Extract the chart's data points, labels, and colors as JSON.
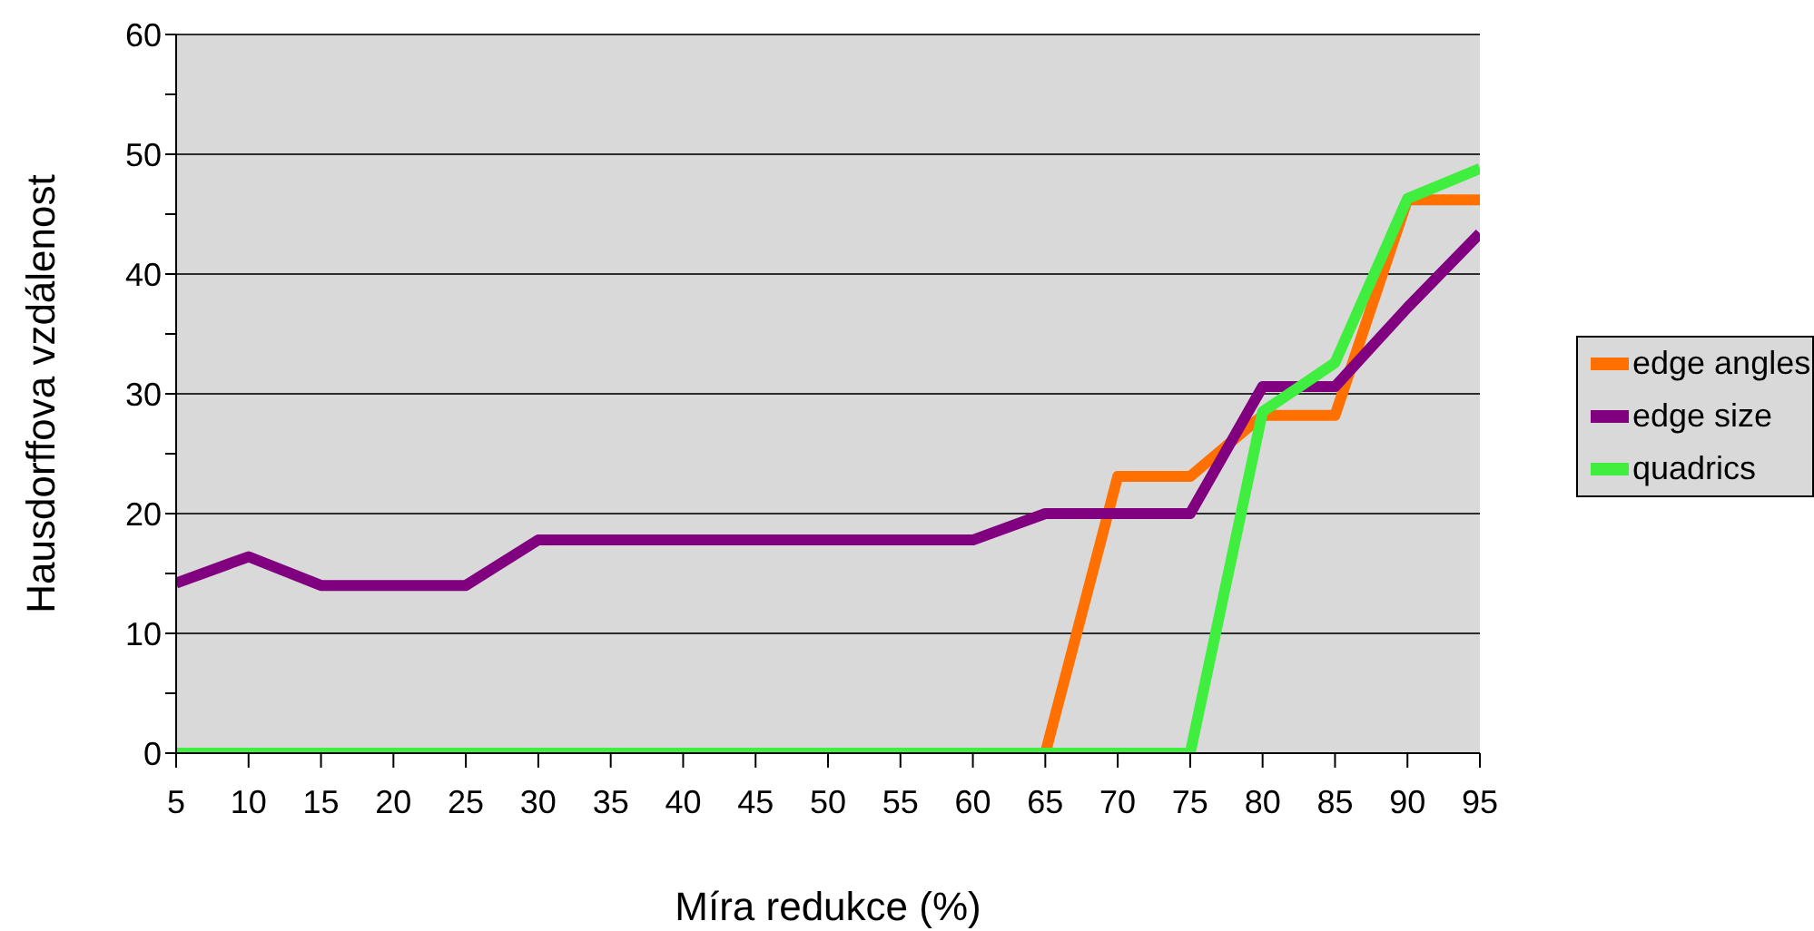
{
  "chart_data": {
    "type": "line",
    "xlabel": "Míra redukce (%)",
    "ylabel": "Hausdorffova vzdálenost",
    "x": [
      5,
      10,
      15,
      20,
      25,
      30,
      35,
      40,
      45,
      50,
      55,
      60,
      65,
      70,
      75,
      80,
      85,
      90,
      95
    ],
    "series": [
      {
        "name": "edge angles",
        "color": "#ff7000",
        "values": [
          null,
          null,
          null,
          null,
          null,
          null,
          null,
          null,
          null,
          null,
          null,
          null,
          0,
          23.1,
          23.1,
          28.2,
          28.2,
          46.2,
          46.2
        ]
      },
      {
        "name": "edge size",
        "color": "#800080",
        "values": [
          14.2,
          16.4,
          14,
          14,
          14,
          17.8,
          17.8,
          17.8,
          17.8,
          17.8,
          17.8,
          17.8,
          20,
          20,
          20,
          30.6,
          30.6,
          37.2,
          43.4
        ]
      },
      {
        "name": "quadrics",
        "color": "#40ee40",
        "values": [
          0,
          0,
          0,
          0,
          0,
          0,
          0,
          0,
          0,
          0,
          0,
          0,
          0,
          0,
          0,
          28.5,
          32.6,
          46.3,
          48.8
        ]
      }
    ],
    "xlim": [
      5,
      95
    ],
    "xticks": [
      5,
      10,
      15,
      20,
      25,
      30,
      35,
      40,
      45,
      50,
      55,
      60,
      65,
      70,
      75,
      80,
      85,
      90,
      95
    ],
    "ylim": [
      0,
      60
    ],
    "yticks": [
      0,
      {
        "value": 5,
        "label": null
      },
      10,
      {
        "value": 15,
        "label": null
      },
      20,
      {
        "value": 25,
        "label": null
      },
      30,
      {
        "value": 35,
        "label": null
      },
      40,
      {
        "value": 45,
        "label": null
      },
      50,
      {
        "value": 55,
        "label": null
      },
      60
    ],
    "grid": "y",
    "legend": "right",
    "marker": "none",
    "line_style": "solid"
  }
}
